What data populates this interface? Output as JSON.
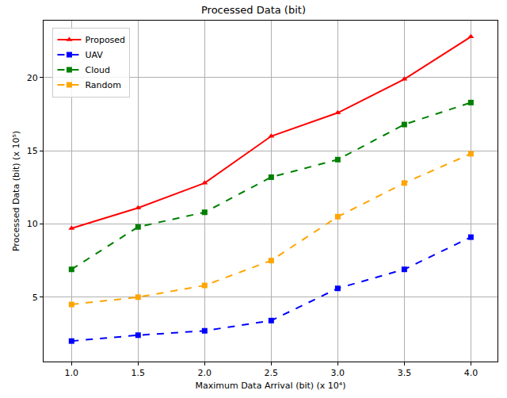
{
  "chart_data": {
    "type": "line",
    "title": "Processed Data (bit)",
    "x_label": "Maximum Data Arrival (bit) (x 10⁴)",
    "y_label": "Processed Data (bit) (x 10⁵)",
    "x": [
      1.0,
      1.5,
      2.0,
      2.5,
      3.0,
      3.5,
      4.0
    ],
    "series": [
      {
        "name": "Proposed",
        "color": "#ff0000",
        "marker": "triangle-up",
        "line_style": "solid",
        "values": [
          9.7,
          11.1,
          12.8,
          16.0,
          17.6,
          19.9,
          22.8
        ]
      },
      {
        "name": "UAV",
        "color": "#0000ff",
        "marker": "square",
        "line_style": "dash",
        "values": [
          2.0,
          2.4,
          2.7,
          3.4,
          5.6,
          6.9,
          9.1
        ]
      },
      {
        "name": "Cloud",
        "color": "#008000",
        "marker": "square",
        "line_style": "dash",
        "values": [
          6.9,
          9.8,
          10.8,
          13.2,
          14.4,
          16.8,
          18.3
        ]
      },
      {
        "name": "Random",
        "color": "#ffa500",
        "marker": "square",
        "line_style": "dash",
        "values": [
          4.5,
          5.0,
          5.8,
          7.5,
          10.5,
          12.8,
          14.8
        ]
      }
    ],
    "xlim": [
      0.79,
      4.2
    ],
    "xticks": [
      {
        "value": 1.0,
        "label": "1.0"
      },
      1.5,
      {
        "value": 2.0,
        "label": "2.0"
      },
      2.5,
      {
        "value": 3.0,
        "label": "3.0"
      },
      3.5,
      {
        "value": 4.0,
        "label": "4.0"
      }
    ],
    "ylim": [
      0.6,
      23.9
    ],
    "yticks": [
      5,
      10,
      15,
      20
    ],
    "grid": true,
    "legend": "upper left"
  }
}
